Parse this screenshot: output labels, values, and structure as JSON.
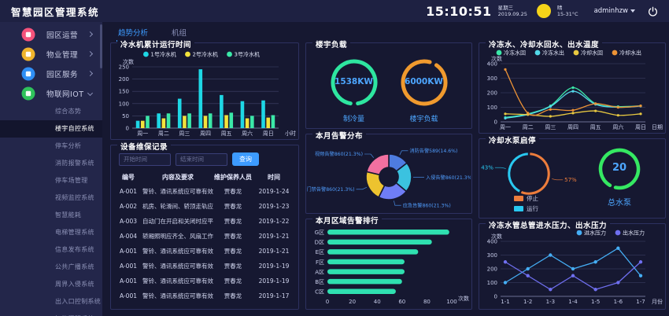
{
  "header": {
    "title": "智慧园区管理系统",
    "time": "15:10:51",
    "weekday": "星期三",
    "date": "2019.09.25",
    "weather": "晴",
    "temp_range": "15-31°C",
    "user": "adminhzw"
  },
  "sidebar": {
    "items": [
      {
        "label": "园区运营",
        "icon": "park-operations-icon",
        "color": "#f5527b",
        "expanded": false
      },
      {
        "label": "物业管理",
        "icon": "property-management-icon",
        "color": "#f0b42c",
        "expanded": false
      },
      {
        "label": "园区服务",
        "icon": "park-services-icon",
        "color": "#2f8ef5",
        "expanded": false
      },
      {
        "label": "物联网IOT",
        "icon": "iot-icon",
        "color": "#2fc25b",
        "expanded": true
      }
    ],
    "submenu": [
      "综合态势",
      "楼宇自控系统",
      "停车分析",
      "消防报警系统",
      "停车场管理",
      "视频监控系统",
      "智慧能耗",
      "电梯管理系统",
      "信息发布系统",
      "公共广播系统",
      "周界入侵系统",
      "出入口控制系统",
      "智能照明系统"
    ],
    "active_submenu": "楼宇自控系统"
  },
  "tabs": [
    {
      "label": "趋势分析",
      "active": true
    },
    {
      "label": "机组",
      "active": false
    }
  ],
  "panels": {
    "chiller_hours": {
      "title": "冷水机累计运行时间"
    },
    "maintenance": {
      "title": "设备维保记录",
      "start_placeholder": "开始时间",
      "end_placeholder": "结束时间",
      "search_label": "查询",
      "columns": [
        "编号",
        "内容及要求",
        "维护保养人员",
        "时间"
      ],
      "rows": [
        [
          "A-001",
          "警铃、通讯系统应可靠有效",
          "贾春龙",
          "2019-1-24"
        ],
        [
          "A-002",
          "机房、轮滑间、轿顶走轨应清理",
          "贾春龙",
          "2019-1-23"
        ],
        [
          "A-003",
          "自动门在开启和关闭时应平稳无震落",
          "贾春龙",
          "2019-1-22"
        ],
        [
          "A-004",
          "轿厢照明应齐全、风扇工作应正常",
          "贾春龙",
          "2019-1-21"
        ],
        [
          "A-001",
          "警铃、通讯系统应可靠有效",
          "贾春龙",
          "2019-1-21"
        ],
        [
          "A-001",
          "警铃、通讯系统应可靠有效",
          "贾春龙",
          "2019-1-19"
        ],
        [
          "A-001",
          "警铃、通讯系统应可靠有效",
          "贾春龙",
          "2019-1-19"
        ],
        [
          "A-001",
          "警铃、通讯系统应可靠有效",
          "贾春龙",
          "2019-1-17"
        ]
      ]
    },
    "building_load": {
      "title": "楼宇负载",
      "gauges": [
        {
          "value": "1538KW",
          "label": "制冷量",
          "ring": "#2ee6a0"
        },
        {
          "value": "6000KW",
          "label": "楼宇负载",
          "ring": "#f09a2e"
        }
      ]
    },
    "alarm_dist": {
      "title": "本月告警分布"
    },
    "alarm_rank": {
      "title": "本月区域告警排行"
    },
    "water_temp": {
      "title": "冷冻水、冷却水回水、出水温度"
    },
    "pump_status": {
      "title": "冷却水泵启停",
      "legend": [
        {
          "label": "停止",
          "color": "#ed7d3c"
        },
        {
          "label": "运行",
          "color": "#29c8f0"
        }
      ],
      "total_value": "20",
      "total_label": "总水泵",
      "total_ring": "#35e862"
    },
    "water_pressure": {
      "title": "冷冻水管总管进水压力、出水压力"
    }
  },
  "chart_data": [
    {
      "id": "chiller_hours",
      "type": "bar",
      "title": "冷水机累计运行时间",
      "ylabel": "次数",
      "xlabel": "小时",
      "ylim": [
        0,
        250
      ],
      "yticks": [
        0,
        50,
        100,
        150,
        200,
        250
      ],
      "categories": [
        "周一",
        "周二",
        "周三",
        "周四",
        "周五",
        "周六",
        "周日"
      ],
      "series": [
        {
          "name": "1号冷水机",
          "color": "#1ed7e5",
          "values": [
            30,
            60,
            120,
            240,
            135,
            110,
            113
          ]
        },
        {
          "name": "2号冷水机",
          "color": "#f2e33c",
          "values": [
            30,
            40,
            50,
            50,
            53,
            40,
            43
          ]
        },
        {
          "name": "3号冷水机",
          "color": "#3be8a8",
          "values": [
            50,
            60,
            60,
            60,
            63,
            50,
            53
          ]
        }
      ]
    },
    {
      "id": "alarm_dist",
      "type": "pie",
      "title": "本月告警分布",
      "slices": [
        {
          "label": "消防告警589(14.6%)",
          "value": 14.6,
          "color": "#4e7ce0"
        },
        {
          "label": "入侵告警860(21.3%)",
          "value": 21.3,
          "color": "#3bc2e0"
        },
        {
          "label": "应急告警860(21.3%)",
          "value": 21.3,
          "color": "#6f7df5"
        },
        {
          "label": "门禁告警860(21.3%)",
          "value": 21.3,
          "color": "#edc32f"
        },
        {
          "label": "视频告警860(21.3%)",
          "value": 21.3,
          "color": "#f170a0"
        }
      ]
    },
    {
      "id": "alarm_rank",
      "type": "bar-horizontal",
      "title": "本月区域告警排行",
      "xlabel": "次数",
      "xlim": [
        0,
        100
      ],
      "xticks": [
        0,
        20,
        40,
        60,
        80,
        100
      ],
      "categories": [
        "G区",
        "D区",
        "E区",
        "F区",
        "A区",
        "B区",
        "C区"
      ],
      "values": [
        98,
        84,
        73,
        62,
        62,
        60,
        55
      ],
      "color": "#2fe0b0"
    },
    {
      "id": "water_temp",
      "type": "line",
      "smooth": true,
      "title": "冷冻水、冷却水回水、出水温度",
      "ylabel": "次数",
      "xlabel": "日期",
      "ylim": [
        0,
        400
      ],
      "yticks": [
        0,
        100,
        200,
        300,
        400
      ],
      "x": [
        "周一",
        "周二",
        "周三",
        "周四",
        "周五",
        "周六",
        "周日"
      ],
      "series": [
        {
          "name": "冷冻水回",
          "color": "#3be8a8",
          "values": [
            30,
            55,
            110,
            235,
            125,
            105,
            110
          ]
        },
        {
          "name": "冷冻水出",
          "color": "#52d8e8",
          "values": [
            25,
            50,
            105,
            210,
            120,
            100,
            108
          ]
        },
        {
          "name": "冷却水回",
          "color": "#e8c840",
          "values": [
            55,
            50,
            38,
            60,
            75,
            45,
            55
          ]
        },
        {
          "name": "冷却水出",
          "color": "#ed9336",
          "values": [
            360,
            60,
            85,
            80,
            125,
            100,
            110
          ]
        }
      ]
    },
    {
      "id": "pump_status",
      "type": "ring",
      "title": "冷却水泵启停",
      "slices": [
        {
          "label": "57%",
          "value": 57,
          "color": "#ed7d3c"
        },
        {
          "label": "43%",
          "value": 43,
          "color": "#29c8f0"
        }
      ]
    },
    {
      "id": "water_pressure",
      "type": "line",
      "smooth": false,
      "title": "冷冻水管总管进水压力、出水压力",
      "ylabel": "次数",
      "xlabel": "月份",
      "ylim": [
        0,
        400
      ],
      "yticks": [
        0,
        100,
        200,
        300,
        400
      ],
      "x": [
        "1-1",
        "1-2",
        "1-3",
        "1-4",
        "1-5",
        "1-6",
        "1-7"
      ],
      "series": [
        {
          "name": "进水压力",
          "color": "#45aef5",
          "values": [
            100,
            200,
            300,
            200,
            250,
            350,
            150
          ]
        },
        {
          "name": "出水压力",
          "color": "#6f6ff0",
          "values": [
            250,
            150,
            50,
            150,
            50,
            100,
            250
          ]
        }
      ]
    }
  ]
}
